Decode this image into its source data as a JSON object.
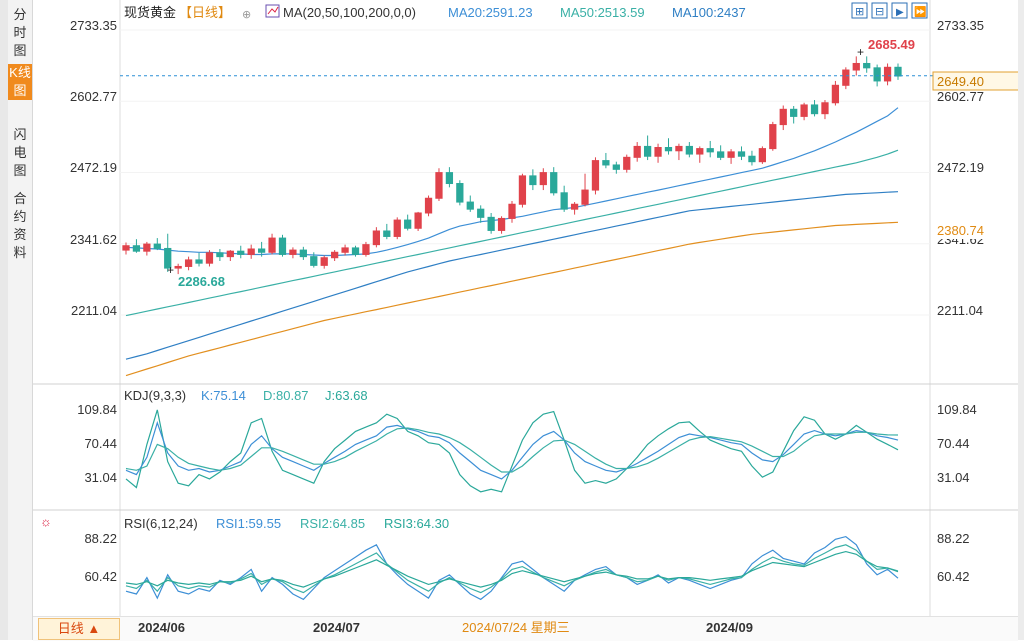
{
  "sidebar": {
    "tabs": [
      {
        "label": "分时图"
      },
      {
        "label": "K线图"
      },
      {
        "label": "闪电图"
      },
      {
        "label": "合约资料"
      }
    ]
  },
  "header": {
    "title": "现货黄金",
    "period": "【日线】",
    "ma_label": "MA(20,50,100,200,0,0)",
    "ma20": "MA20:2591.23",
    "ma50": "MA50:2513.59",
    "ma100": "MA100:2437"
  },
  "kdj": {
    "label": "KDJ(9,3,3)",
    "k": "K:75.14",
    "d": "D:80.87",
    "j": "J:63.68"
  },
  "rsi": {
    "label": "RSI(6,12,24)",
    "r1": "RSI1:59.55",
    "r2": "RSI2:64.85",
    "r3": "RSI3:64.30"
  },
  "price_axis": {
    "ticks": [
      "2733.35",
      "2602.77",
      "2472.19",
      "2341.62",
      "2211.04"
    ],
    "current_price": "2649.40",
    "ma200_tag": "2380.74",
    "high_label": "2685.49",
    "low_label": "2286.68"
  },
  "kdj_axis": {
    "ticks": [
      "109.84",
      "70.44",
      "31.04"
    ]
  },
  "rsi_axis": {
    "ticks": [
      "88.22",
      "60.42"
    ]
  },
  "time_axis": {
    "labels": [
      "2024/06",
      "2024/07",
      "2024/09"
    ],
    "crosshair_date": "2024/07/24 星期三",
    "period_button": "日线 ▲"
  },
  "colors": {
    "up": "#e0424b",
    "down": "#2aa89a",
    "ma20": "#3d8fd6",
    "ma50": "#3ab0a6",
    "ma100": "#2f7fc4",
    "ma200": "#e28f1f"
  },
  "chart_data": {
    "type": "candlestick",
    "title": "现货黄金",
    "ylim": [
      2160,
      2760
    ],
    "candles": [
      [
        2330,
        2344,
        2322,
        2338
      ],
      [
        2338,
        2350,
        2325,
        2328
      ],
      [
        2328,
        2345,
        2320,
        2341
      ],
      [
        2341,
        2352,
        2330,
        2333
      ],
      [
        2333,
        2360,
        2290,
        2297
      ],
      [
        2297,
        2305,
        2286,
        2300
      ],
      [
        2300,
        2318,
        2293,
        2312
      ],
      [
        2312,
        2325,
        2300,
        2306
      ],
      [
        2306,
        2330,
        2300,
        2325
      ],
      [
        2325,
        2332,
        2310,
        2318
      ],
      [
        2318,
        2330,
        2310,
        2328
      ],
      [
        2328,
        2338,
        2315,
        2322
      ],
      [
        2322,
        2340,
        2314,
        2332
      ],
      [
        2332,
        2345,
        2318,
        2326
      ],
      [
        2326,
        2360,
        2322,
        2352
      ],
      [
        2352,
        2358,
        2318,
        2322
      ],
      [
        2322,
        2335,
        2315,
        2330
      ],
      [
        2330,
        2336,
        2312,
        2318
      ],
      [
        2318,
        2326,
        2298,
        2302
      ],
      [
        2302,
        2320,
        2296,
        2316
      ],
      [
        2316,
        2330,
        2310,
        2326
      ],
      [
        2326,
        2340,
        2320,
        2334
      ],
      [
        2334,
        2338,
        2318,
        2322
      ],
      [
        2322,
        2345,
        2318,
        2340
      ],
      [
        2340,
        2372,
        2335,
        2365
      ],
      [
        2365,
        2378,
        2350,
        2355
      ],
      [
        2355,
        2390,
        2350,
        2385
      ],
      [
        2385,
        2395,
        2366,
        2370
      ],
      [
        2370,
        2400,
        2365,
        2398
      ],
      [
        2398,
        2430,
        2392,
        2425
      ],
      [
        2425,
        2480,
        2420,
        2472
      ],
      [
        2472,
        2482,
        2445,
        2452
      ],
      [
        2452,
        2458,
        2412,
        2418
      ],
      [
        2418,
        2430,
        2400,
        2405
      ],
      [
        2405,
        2412,
        2380,
        2390
      ],
      [
        2390,
        2398,
        2360,
        2366
      ],
      [
        2366,
        2392,
        2360,
        2388
      ],
      [
        2388,
        2420,
        2380,
        2414
      ],
      [
        2414,
        2470,
        2408,
        2466
      ],
      [
        2466,
        2478,
        2440,
        2450
      ],
      [
        2450,
        2480,
        2440,
        2472
      ],
      [
        2472,
        2482,
        2430,
        2435
      ],
      [
        2435,
        2448,
        2400,
        2405
      ],
      [
        2405,
        2418,
        2395,
        2414
      ],
      [
        2414,
        2470,
        2410,
        2440
      ],
      [
        2440,
        2500,
        2432,
        2494
      ],
      [
        2494,
        2508,
        2480,
        2486
      ],
      [
        2486,
        2492,
        2470,
        2478
      ],
      [
        2478,
        2505,
        2472,
        2500
      ],
      [
        2500,
        2528,
        2492,
        2520
      ],
      [
        2520,
        2540,
        2495,
        2502
      ],
      [
        2502,
        2525,
        2490,
        2518
      ],
      [
        2518,
        2535,
        2505,
        2512
      ],
      [
        2512,
        2525,
        2495,
        2520
      ],
      [
        2520,
        2528,
        2500,
        2506
      ],
      [
        2506,
        2520,
        2490,
        2516
      ],
      [
        2516,
        2530,
        2500,
        2510
      ],
      [
        2510,
        2522,
        2495,
        2500
      ],
      [
        2500,
        2515,
        2488,
        2510
      ],
      [
        2510,
        2520,
        2495,
        2502
      ],
      [
        2502,
        2512,
        2485,
        2492
      ],
      [
        2492,
        2520,
        2488,
        2516
      ],
      [
        2516,
        2565,
        2512,
        2560
      ],
      [
        2560,
        2595,
        2550,
        2588
      ],
      [
        2588,
        2594,
        2562,
        2575
      ],
      [
        2575,
        2600,
        2568,
        2596
      ],
      [
        2596,
        2605,
        2575,
        2580
      ],
      [
        2580,
        2605,
        2570,
        2600
      ],
      [
        2600,
        2640,
        2595,
        2632
      ],
      [
        2632,
        2665,
        2625,
        2660
      ],
      [
        2660,
        2685,
        2650,
        2672
      ],
      [
        2672,
        2685,
        2655,
        2664
      ],
      [
        2664,
        2670,
        2630,
        2640
      ],
      [
        2640,
        2672,
        2632,
        2665
      ],
      [
        2665,
        2672,
        2642,
        2649
      ]
    ],
    "ma20": [
      2335,
      2334,
      2333,
      2332,
      2330,
      2328,
      2327,
      2326,
      2326,
      2325,
      2324,
      2323,
      2322,
      2322,
      2323,
      2323,
      2323,
      2322,
      2321,
      2320,
      2320,
      2321,
      2322,
      2323,
      2326,
      2330,
      2335,
      2340,
      2346,
      2352,
      2360,
      2368,
      2374,
      2378,
      2382,
      2384,
      2386,
      2389,
      2392,
      2396,
      2400,
      2404,
      2406,
      2408,
      2412,
      2416,
      2420,
      2424,
      2428,
      2432,
      2436,
      2440,
      2444,
      2448,
      2452,
      2456,
      2460,
      2464,
      2468,
      2472,
      2476,
      2480,
      2486,
      2492,
      2498,
      2505,
      2512,
      2520,
      2528,
      2537,
      2546,
      2556,
      2566,
      2576,
      2591
    ],
    "ma50": [
      2210,
      2214,
      2218,
      2222,
      2226,
      2230,
      2234,
      2238,
      2242,
      2246,
      2250,
      2254,
      2258,
      2262,
      2266,
      2270,
      2274,
      2278,
      2282,
      2286,
      2290,
      2294,
      2298,
      2302,
      2306,
      2310,
      2314,
      2318,
      2322,
      2326,
      2330,
      2334,
      2338,
      2342,
      2346,
      2350,
      2354,
      2358,
      2362,
      2366,
      2370,
      2374,
      2378,
      2382,
      2386,
      2390,
      2394,
      2398,
      2402,
      2406,
      2410,
      2414,
      2418,
      2422,
      2426,
      2430,
      2434,
      2438,
      2442,
      2446,
      2450,
      2454,
      2458,
      2462,
      2466,
      2470,
      2474,
      2478,
      2482,
      2486,
      2490,
      2495,
      2500,
      2506,
      2513
    ],
    "ma100": [
      2130,
      2135,
      2140,
      2146,
      2152,
      2158,
      2164,
      2170,
      2176,
      2182,
      2188,
      2194,
      2200,
      2206,
      2212,
      2218,
      2224,
      2230,
      2236,
      2242,
      2248,
      2254,
      2260,
      2266,
      2272,
      2278,
      2284,
      2290,
      2295,
      2300,
      2305,
      2310,
      2314,
      2318,
      2322,
      2326,
      2330,
      2334,
      2338,
      2342,
      2346,
      2350,
      2354,
      2358,
      2362,
      2366,
      2370,
      2374,
      2378,
      2382,
      2386,
      2390,
      2394,
      2398,
      2402,
      2404,
      2406,
      2408,
      2410,
      2412,
      2414,
      2416,
      2418,
      2420,
      2422,
      2424,
      2426,
      2428,
      2430,
      2432,
      2433,
      2434,
      2435,
      2436,
      2437
    ],
    "ma200": [
      2100,
      2106,
      2112,
      2118,
      2124,
      2130,
      2136,
      2141,
      2146,
      2151,
      2156,
      2161,
      2166,
      2171,
      2176,
      2181,
      2186,
      2191,
      2196,
      2201,
      2205,
      2209,
      2213,
      2217,
      2221,
      2225,
      2229,
      2233,
      2237,
      2241,
      2245,
      2249,
      2253,
      2257,
      2261,
      2265,
      2269,
      2273,
      2277,
      2281,
      2285,
      2289,
      2293,
      2297,
      2301,
      2305,
      2309,
      2313,
      2317,
      2321,
      2325,
      2329,
      2333,
      2337,
      2341,
      2344,
      2347,
      2350,
      2353,
      2356,
      2359,
      2361,
      2363,
      2365,
      2367,
      2369,
      2371,
      2373,
      2375,
      2376,
      2377,
      2378,
      2379,
      2380,
      2381
    ],
    "kdj_ylim": [
      10,
      120
    ],
    "kdj_k": [
      40,
      35,
      55,
      95,
      60,
      45,
      40,
      42,
      38,
      40,
      45,
      50,
      70,
      80,
      65,
      55,
      50,
      45,
      40,
      48,
      55,
      62,
      70,
      75,
      80,
      90,
      92,
      88,
      85,
      80,
      78,
      72,
      60,
      50,
      40,
      35,
      30,
      40,
      55,
      70,
      80,
      85,
      75,
      60,
      50,
      45,
      40,
      38,
      42,
      48,
      55,
      62,
      70,
      78,
      82,
      80,
      78,
      75,
      72,
      70,
      60,
      52,
      50,
      58,
      70,
      82,
      86,
      82,
      80,
      82,
      86,
      84,
      80,
      78,
      75
    ],
    "kdj_d": [
      42,
      40,
      45,
      70,
      65,
      55,
      48,
      45,
      42,
      40,
      42,
      46,
      56,
      66,
      66,
      62,
      57,
      52,
      47,
      47,
      50,
      55,
      62,
      68,
      74,
      82,
      88,
      89,
      87,
      84,
      82,
      78,
      72,
      64,
      55,
      46,
      38,
      38,
      45,
      56,
      66,
      74,
      75,
      70,
      62,
      54,
      47,
      42,
      42,
      44,
      48,
      54,
      61,
      68,
      75,
      78,
      79,
      77,
      75,
      73,
      68,
      62,
      56,
      56,
      62,
      72,
      80,
      82,
      82,
      82,
      84,
      84,
      82,
      81,
      80.87
    ],
    "kdj_j": [
      30,
      20,
      70,
      110,
      50,
      25,
      22,
      35,
      30,
      38,
      50,
      60,
      95,
      100,
      62,
      40,
      35,
      30,
      25,
      50,
      65,
      75,
      85,
      90,
      95,
      105,
      100,
      85,
      80,
      72,
      70,
      60,
      35,
      22,
      15,
      18,
      15,
      45,
      75,
      95,
      105,
      108,
      75,
      40,
      25,
      28,
      25,
      30,
      42,
      55,
      70,
      80,
      88,
      95,
      96,
      85,
      75,
      70,
      65,
      62,
      45,
      32,
      38,
      62,
      86,
      102,
      98,
      82,
      76,
      82,
      92,
      84,
      76,
      70,
      63.68
    ],
    "rsi_ylim": [
      40,
      96
    ],
    "rsi1": [
      50,
      48,
      60,
      45,
      62,
      50,
      48,
      52,
      50,
      58,
      55,
      60,
      66,
      50,
      60,
      55,
      48,
      44,
      52,
      60,
      65,
      70,
      75,
      80,
      84,
      70,
      62,
      55,
      50,
      45,
      58,
      62,
      55,
      48,
      44,
      50,
      60,
      70,
      72,
      66,
      60,
      55,
      50,
      58,
      62,
      66,
      68,
      62,
      60,
      55,
      58,
      62,
      56,
      60,
      58,
      55,
      52,
      55,
      58,
      60,
      70,
      76,
      80,
      74,
      72,
      70,
      78,
      82,
      88,
      90,
      84,
      70,
      62,
      66,
      59.55
    ],
    "rsi2": [
      54,
      52,
      58,
      50,
      60,
      54,
      52,
      54,
      53,
      57,
      56,
      59,
      63,
      55,
      59,
      57,
      52,
      49,
      54,
      59,
      62,
      66,
      70,
      74,
      78,
      70,
      64,
      58,
      54,
      50,
      56,
      60,
      56,
      52,
      49,
      53,
      59,
      66,
      68,
      64,
      60,
      57,
      54,
      58,
      61,
      64,
      66,
      62,
      60,
      57,
      58,
      61,
      58,
      60,
      59,
      57,
      55,
      57,
      59,
      60,
      66,
      71,
      75,
      72,
      70,
      69,
      74,
      78,
      82,
      84,
      80,
      72,
      66,
      67,
      64.85
    ],
    "rsi3": [
      56,
      55,
      57,
      54,
      58,
      56,
      55,
      56,
      55,
      57,
      57,
      58,
      61,
      57,
      59,
      58,
      55,
      53,
      56,
      59,
      61,
      64,
      67,
      70,
      73,
      69,
      65,
      61,
      58,
      55,
      57,
      59,
      57,
      55,
      53,
      55,
      58,
      63,
      65,
      63,
      61,
      59,
      57,
      59,
      61,
      63,
      64,
      62,
      61,
      59,
      59,
      61,
      59,
      60,
      60,
      59,
      58,
      59,
      60,
      61,
      65,
      68,
      71,
      70,
      69,
      68,
      71,
      74,
      77,
      79,
      77,
      72,
      68,
      67,
      64.3
    ]
  }
}
